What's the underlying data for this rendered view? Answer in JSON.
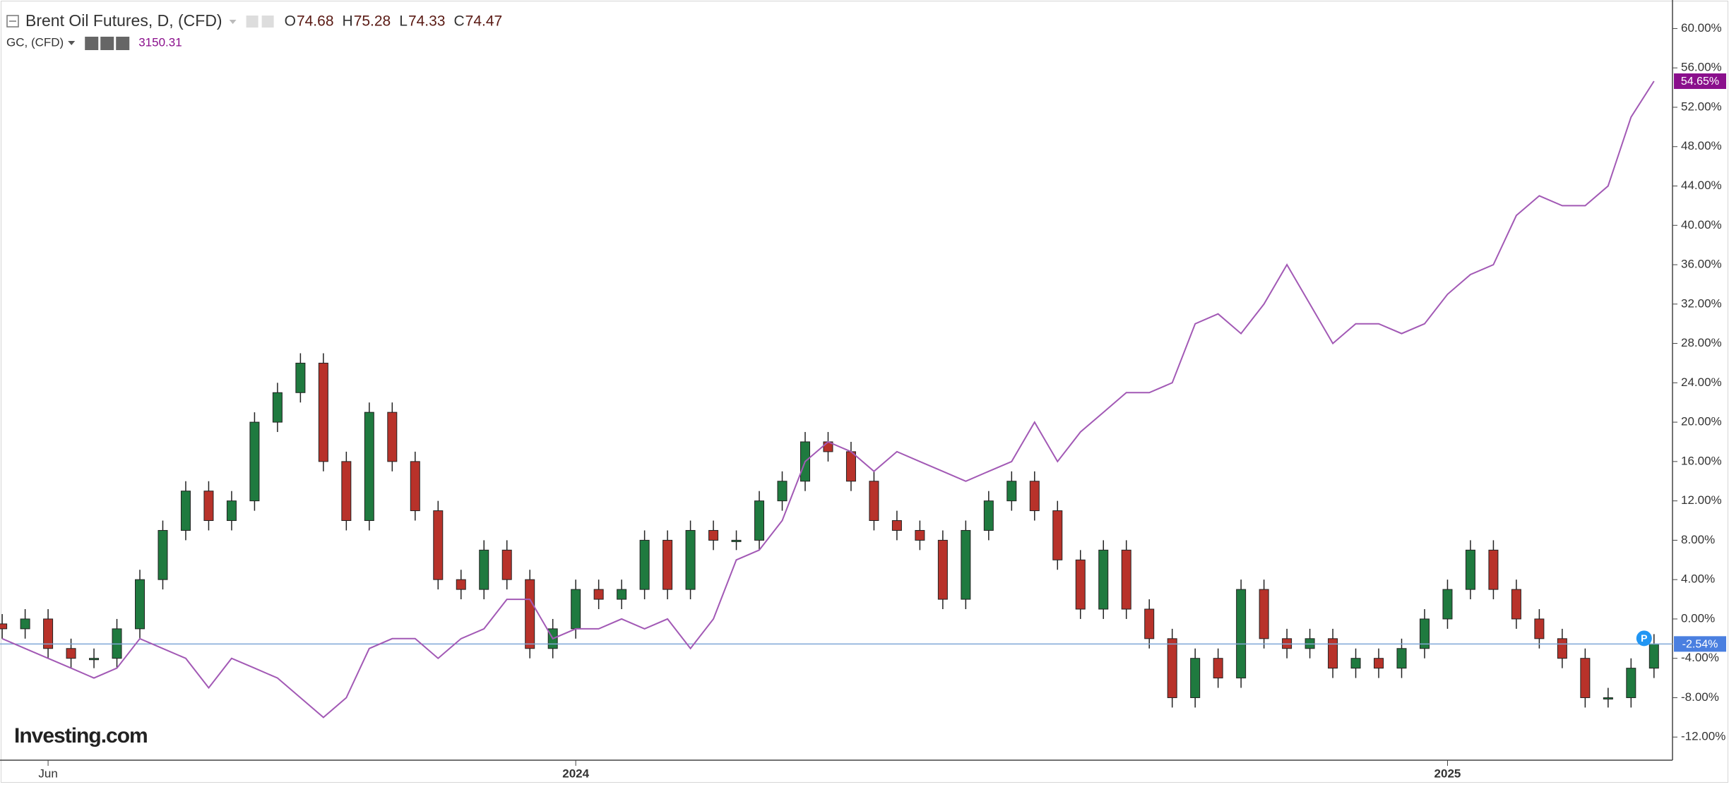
{
  "chart_data": {
    "type": "candlestick",
    "title": "Brent Oil Futures, D, (CFD)",
    "ohlc": [
      {
        "name": "O",
        "value": 74.68
      },
      {
        "name": "H",
        "value": 75.28
      },
      {
        "name": "L",
        "value": 74.33
      },
      {
        "name": "C",
        "value": 74.47
      }
    ],
    "watermark": "Investing.com",
    "marker": "P",
    "categories": [
      null,
      null,
      "Jun",
      null,
      null,
      null,
      null,
      null,
      null,
      null,
      null,
      null,
      null,
      null,
      null,
      null,
      null,
      null,
      null,
      null,
      null,
      null,
      null,
      null,
      null,
      "2024",
      null,
      null,
      null,
      null,
      null,
      null,
      null,
      null,
      null,
      null,
      null,
      null,
      null,
      null,
      null,
      null,
      null,
      null,
      null,
      null,
      null,
      null,
      null,
      null,
      null,
      null,
      null,
      null,
      null,
      null,
      null,
      null,
      null,
      null,
      null,
      null,
      null,
      "2025",
      null,
      null,
      null,
      null,
      null,
      null,
      null,
      null,
      null
    ],
    "ylim": [
      -14.35,
      62.9
    ],
    "yticks": [
      {
        "value": 60,
        "label": "60.00%"
      },
      {
        "value": 56,
        "label": "56.00%"
      },
      {
        "value": 52,
        "label": "52.00%"
      },
      {
        "value": 48,
        "label": "48.00%"
      },
      {
        "value": 44,
        "label": "44.00%"
      },
      {
        "value": 40,
        "label": "40.00%"
      },
      {
        "value": 36,
        "label": "36.00%"
      },
      {
        "value": 32,
        "label": "32.00%"
      },
      {
        "value": 28,
        "label": "28.00%"
      },
      {
        "value": 24,
        "label": "24.00%"
      },
      {
        "value": 20,
        "label": "20.00%"
      },
      {
        "value": 16,
        "label": "16.00%"
      },
      {
        "value": 12,
        "label": "12.00%"
      },
      {
        "value": 8,
        "label": "8.00%"
      },
      {
        "value": 4,
        "label": "4.00%"
      },
      {
        "value": 0,
        "label": "0.00%"
      },
      {
        "value": -4,
        "label": "-4.00%"
      },
      {
        "value": -8,
        "label": "-8.00%"
      },
      {
        "value": -12,
        "label": "-12.00%"
      }
    ],
    "series": [
      {
        "type": "candlestick",
        "up_color": "#1f7a3f",
        "down_color": "#b8322a",
        "tag_color": "#4a7fe0",
        "open": [
          -0.5,
          -1,
          0,
          -3,
          -4,
          -4,
          -1,
          4,
          9,
          13,
          10,
          12,
          20,
          23,
          26,
          16,
          10,
          21,
          16,
          11,
          4,
          3,
          7,
          4,
          -3,
          -1,
          3,
          2,
          3,
          8,
          3,
          9,
          8,
          8,
          12,
          14,
          18,
          17,
          14,
          10,
          9,
          8,
          2,
          9,
          12,
          14,
          11,
          6,
          1,
          7,
          1,
          -2,
          -8,
          -4,
          -6,
          3,
          -2,
          -3,
          -2,
          -5,
          -4,
          -5,
          -3,
          0,
          3,
          7,
          3,
          0,
          -2,
          -4,
          -8,
          -8,
          -5
        ],
        "high": [
          0.5,
          1,
          1,
          -2,
          -3,
          0,
          5,
          10,
          14,
          14,
          13,
          21,
          24,
          27,
          27,
          17,
          22,
          22,
          17,
          12,
          5,
          8,
          8,
          5,
          0,
          4,
          4,
          4,
          9,
          9,
          10,
          10,
          9,
          13,
          15,
          19,
          19,
          18,
          15,
          11,
          10,
          9,
          10,
          13,
          15,
          15,
          12,
          7,
          8,
          8,
          2,
          -1,
          -3,
          -3,
          4,
          4,
          -1,
          -1,
          -1,
          -3,
          -3,
          -2,
          1,
          4,
          8,
          8,
          4,
          1,
          -1,
          -3,
          -7,
          -4,
          -1.54
        ],
        "low": [
          -2,
          -2,
          -4,
          -5,
          -5,
          -5,
          -2,
          3,
          8,
          9,
          9,
          11,
          19,
          22,
          15,
          9,
          9,
          15,
          10,
          3,
          2,
          2,
          3,
          -4,
          -4,
          -2,
          1,
          1,
          2,
          2,
          2,
          7,
          7,
          7,
          11,
          13,
          16,
          13,
          9,
          8,
          7,
          1,
          1,
          8,
          11,
          10,
          5,
          0,
          0,
          0,
          -3,
          -9,
          -9,
          -7,
          -7,
          -3,
          -4,
          -4,
          -6,
          -6,
          -6,
          -6,
          -4,
          -1,
          2,
          2,
          -1,
          -3,
          -5,
          -9,
          -9,
          -9,
          -6
        ],
        "close": [
          -1,
          0,
          -3,
          -4,
          -4,
          -1,
          4,
          9,
          13,
          10,
          12,
          20,
          23,
          26,
          16,
          10,
          21,
          16,
          11,
          4,
          3,
          7,
          4,
          -3,
          -1,
          3,
          2,
          3,
          8,
          3,
          9,
          8,
          8,
          12,
          14,
          18,
          17,
          14,
          10,
          9,
          8,
          2,
          9,
          12,
          14,
          11,
          6,
          1,
          7,
          1,
          -2,
          -8,
          -4,
          -6,
          3,
          -2,
          -3,
          -2,
          -5,
          -4,
          -5,
          -3,
          0,
          3,
          7,
          3,
          0,
          -2,
          -4,
          -8,
          -8,
          -5,
          -2.54
        ],
        "value_labels": [
          null,
          null,
          null,
          null,
          null,
          null,
          null,
          null,
          null,
          null,
          null,
          null,
          null,
          null,
          null,
          null,
          null,
          null,
          null,
          null,
          null,
          null,
          null,
          null,
          null,
          null,
          null,
          null,
          null,
          null,
          null,
          null,
          null,
          null,
          null,
          null,
          null,
          null,
          null,
          null,
          null,
          null,
          null,
          null,
          null,
          null,
          null,
          null,
          null,
          null,
          null,
          null,
          null,
          null,
          null,
          null,
          null,
          null,
          null,
          null,
          null,
          null,
          null,
          null,
          null,
          null,
          null,
          null,
          null,
          null,
          null,
          null,
          "-2.54%"
        ]
      },
      {
        "type": "line",
        "name": "GC, (CFD)",
        "last_price": 3150.31,
        "color": "#a259b5",
        "tag_color": "#8a0f8c",
        "values": [
          -2,
          -3,
          -4,
          -5,
          -6,
          -5,
          -2,
          -3,
          -4,
          -7,
          -4,
          -5,
          -6,
          -8,
          -10,
          -8,
          -3,
          -2,
          -2,
          -4,
          -2,
          -1,
          2,
          2,
          -2,
          -1,
          -1,
          0,
          -1,
          0,
          -3,
          0,
          6,
          7,
          10,
          16,
          18,
          17,
          15,
          17,
          16,
          15,
          14,
          15,
          16,
          20,
          16,
          19,
          21,
          23,
          23,
          24,
          30,
          31,
          29,
          32,
          36,
          32,
          28,
          30,
          30,
          29,
          30,
          33,
          35,
          36,
          41,
          43,
          42,
          42,
          44,
          51,
          54.65
        ],
        "value_labels": [
          null,
          null,
          null,
          null,
          null,
          null,
          null,
          null,
          null,
          null,
          null,
          null,
          null,
          null,
          null,
          null,
          null,
          null,
          null,
          null,
          null,
          null,
          null,
          null,
          null,
          null,
          null,
          null,
          null,
          null,
          null,
          null,
          null,
          null,
          null,
          null,
          null,
          null,
          null,
          null,
          null,
          null,
          null,
          null,
          null,
          null,
          null,
          null,
          null,
          null,
          null,
          null,
          null,
          null,
          null,
          null,
          null,
          null,
          null,
          null,
          null,
          null,
          null,
          null,
          null,
          null,
          null,
          null,
          null,
          null,
          null,
          null,
          "54.65%"
        ]
      }
    ]
  }
}
